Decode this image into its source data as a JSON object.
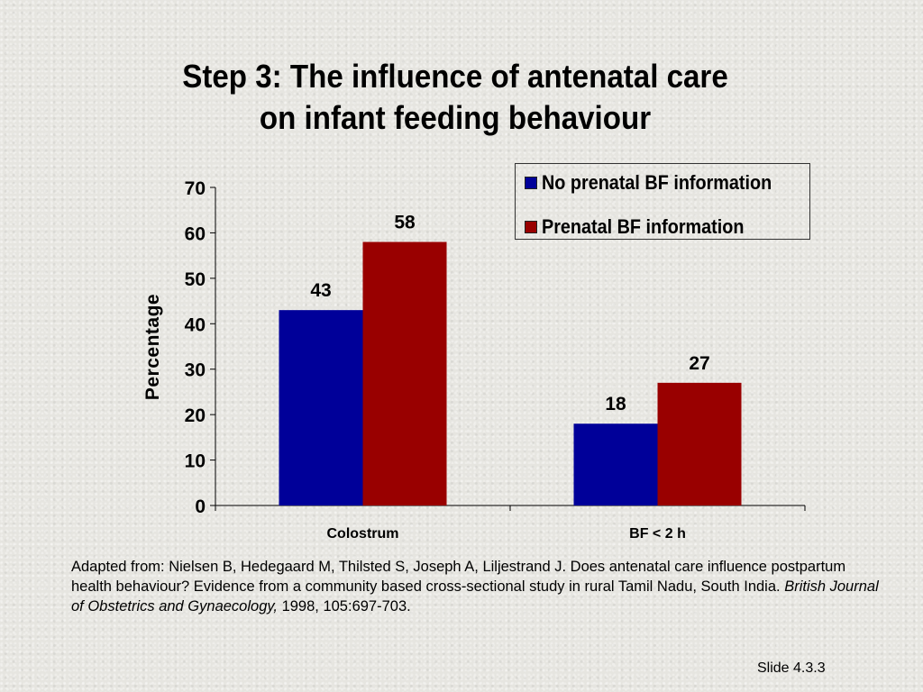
{
  "title": {
    "line1": "Step 3: The influence of antenatal care",
    "line2": "on infant feeding behaviour"
  },
  "chart_data": {
    "type": "bar",
    "categories": [
      "Colostrum",
      "BF < 2 h"
    ],
    "series": [
      {
        "name": "No prenatal BF information",
        "values": [
          43,
          18
        ],
        "color": "#000099"
      },
      {
        "name": "Prenatal BF information",
        "values": [
          58,
          27
        ],
        "color": "#990000"
      }
    ],
    "xlabel": "",
    "ylabel": "Percentage",
    "ylim": [
      0,
      70
    ],
    "yticks": [
      0,
      10,
      20,
      30,
      40,
      50,
      60,
      70
    ],
    "grid": false,
    "legend_position": "top-right"
  },
  "source": {
    "text_before": "Adapted from: Nielsen B, Hedegaard M, Thilsted S, Joseph A, Liljestrand J. Does antenatal care influence postpartum health behaviour? Evidence from a community based cross-sectional study in rural Tamil Nadu, South India.",
    "journal": "British Journal of Obstetrics and Gynaecology,",
    "text_after": "1998, 105:697-703."
  },
  "slide_number": "Slide 4.3.3"
}
